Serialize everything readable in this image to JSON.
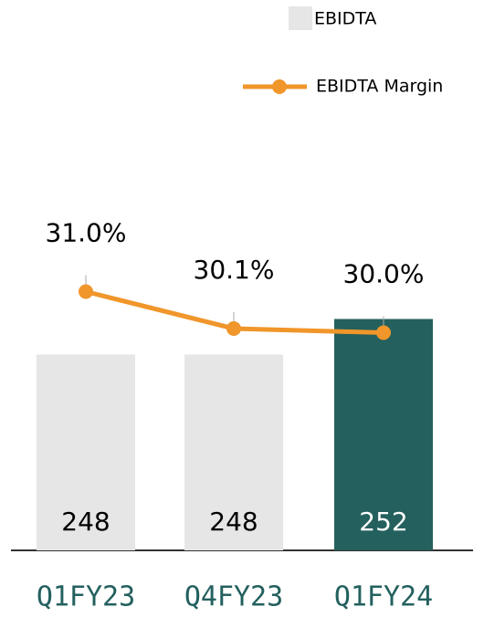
{
  "chart_data": {
    "type": "bar",
    "categories": [
      "Q1FY23",
      "Q4FY23",
      "Q1FY24"
    ],
    "series": [
      {
        "name": "EBIDTA",
        "type": "bar",
        "color": "#e6e6e6",
        "colors": [
          "#e6e6e6",
          "#e6e6e6",
          "#23605e"
        ],
        "label_colors": [
          "#000000",
          "#000000",
          "#ffffff"
        ],
        "values": [
          248,
          248,
          252
        ]
      },
      {
        "name": "EBIDTA Margin",
        "type": "line",
        "axis": "y2",
        "color": "#f0962a",
        "values": [
          31.0,
          30.1,
          30.0
        ],
        "value_labels": [
          "31.0%",
          "30.1%",
          "30.0%"
        ]
      }
    ],
    "ylim": [
      226,
      262
    ],
    "y2lim": [
      24.7,
      32.5
    ],
    "category_color": "#23605e"
  }
}
